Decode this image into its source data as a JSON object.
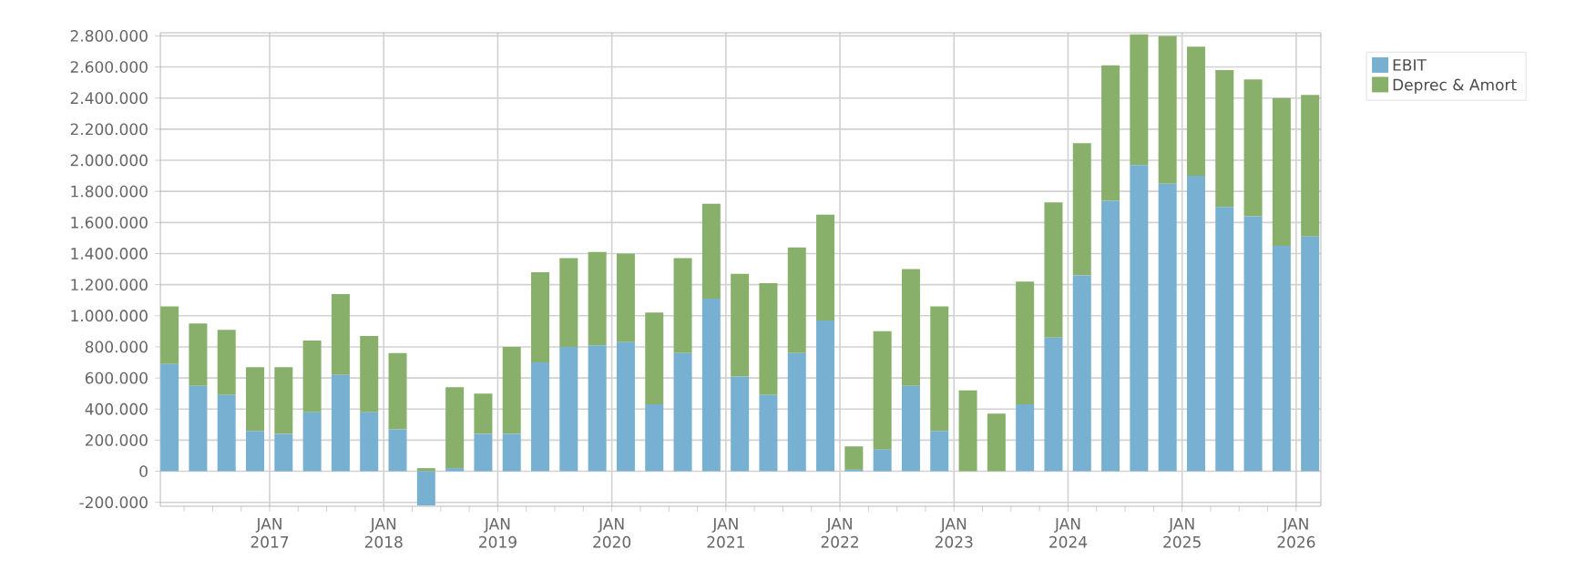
{
  "chart_data": {
    "type": "bar",
    "stacked": true,
    "grid": true,
    "legend": "right",
    "x": [
      "2016-02-15",
      "2016-05-15",
      "2016-08-15",
      "2016-11-15",
      "2017-02-15",
      "2017-05-15",
      "2017-08-15",
      "2017-11-15",
      "2018-02-15",
      "2018-05-15",
      "2018-08-15",
      "2018-11-15",
      "2019-02-15",
      "2019-05-15",
      "2019-08-15",
      "2019-11-15",
      "2020-02-15",
      "2020-05-15",
      "2020-08-15",
      "2020-11-15",
      "2021-02-15",
      "2021-05-15",
      "2021-08-15",
      "2021-11-15",
      "2022-02-15",
      "2022-05-15",
      "2022-08-15",
      "2022-11-15",
      "2023-02-15",
      "2023-05-15",
      "2023-08-15",
      "2023-11-15",
      "2024-02-15",
      "2024-05-15",
      "2024-08-15",
      "2024-11-15",
      "2025-02-15",
      "2025-05-15",
      "2025-08-15",
      "2025-11-15",
      "2026-02-15"
    ],
    "series": [
      {
        "name": "EBIT",
        "color": "#78b0d2",
        "values": [
          690000,
          550000,
          490000,
          260000,
          240000,
          380000,
          620000,
          380000,
          270000,
          -220000,
          20000,
          240000,
          240000,
          700000,
          800000,
          810000,
          830000,
          430000,
          760000,
          1110000,
          610000,
          490000,
          760000,
          970000,
          10000,
          140000,
          550000,
          260000,
          null,
          null,
          430000,
          860000,
          1260000,
          1740000,
          1970000,
          1850000,
          1900000,
          1700000,
          1640000,
          1450000,
          1510000
        ]
      },
      {
        "name": "Deprec & Amort",
        "color": "#88b06a",
        "values": [
          370000,
          400000,
          420000,
          410000,
          430000,
          460000,
          520000,
          490000,
          490000,
          20000,
          520000,
          260000,
          560000,
          580000,
          570000,
          600000,
          570000,
          590000,
          610000,
          610000,
          660000,
          720000,
          680000,
          680000,
          150000,
          760000,
          750000,
          800000,
          520000,
          370000,
          790000,
          870000,
          850000,
          870000,
          840000,
          950000,
          830000,
          880000,
          880000,
          950000,
          910000
        ]
      }
    ],
    "xlim": [
      "2016-01-16",
      "2026-03-19"
    ],
    "xticks": [
      {
        "value": "2016-04-01",
        "label": null
      },
      {
        "value": "2016-07-01",
        "label": null
      },
      {
        "value": "2016-10-01",
        "label": null
      },
      {
        "value": "2017-01-01",
        "label": "JAN 2017"
      },
      {
        "value": "2017-04-01",
        "label": null
      },
      {
        "value": "2017-07-01",
        "label": null
      },
      {
        "value": "2017-10-01",
        "label": null
      },
      {
        "value": "2018-01-01",
        "label": "JAN 2018"
      },
      {
        "value": "2018-04-01",
        "label": null
      },
      {
        "value": "2018-07-01",
        "label": null
      },
      {
        "value": "2018-10-01",
        "label": null
      },
      {
        "value": "2019-01-01",
        "label": "JAN 2019"
      },
      {
        "value": "2019-04-01",
        "label": null
      },
      {
        "value": "2019-07-01",
        "label": null
      },
      {
        "value": "2019-10-01",
        "label": null
      },
      {
        "value": "2020-01-01",
        "label": "JAN 2020"
      },
      {
        "value": "2020-04-01",
        "label": null
      },
      {
        "value": "2020-07-01",
        "label": null
      },
      {
        "value": "2020-10-01",
        "label": null
      },
      {
        "value": "2021-01-01",
        "label": "JAN 2021"
      },
      {
        "value": "2021-04-01",
        "label": null
      },
      {
        "value": "2021-07-01",
        "label": null
      },
      {
        "value": "2021-10-01",
        "label": null
      },
      {
        "value": "2022-01-01",
        "label": "JAN 2022"
      },
      {
        "value": "2022-04-01",
        "label": null
      },
      {
        "value": "2022-07-01",
        "label": null
      },
      {
        "value": "2022-10-01",
        "label": null
      },
      {
        "value": "2023-01-01",
        "label": "JAN 2023"
      },
      {
        "value": "2023-04-01",
        "label": null
      },
      {
        "value": "2023-07-01",
        "label": null
      },
      {
        "value": "2023-10-01",
        "label": null
      },
      {
        "value": "2024-01-01",
        "label": "JAN 2024"
      },
      {
        "value": "2024-04-01",
        "label": null
      },
      {
        "value": "2024-07-01",
        "label": null
      },
      {
        "value": "2024-10-01",
        "label": null
      },
      {
        "value": "2025-01-01",
        "label": "JAN 2025"
      },
      {
        "value": "2025-04-01",
        "label": null
      },
      {
        "value": "2025-07-01",
        "label": null
      },
      {
        "value": "2025-10-01",
        "label": null
      },
      {
        "value": "2026-01-01",
        "label": "JAN 2026"
      }
    ],
    "ylim": [
      -225000,
      2820000
    ],
    "yticks": [
      {
        "value": -200000,
        "label": "-200.000"
      },
      0,
      {
        "value": 200000,
        "label": "200.000"
      },
      {
        "value": 400000,
        "label": "400.000"
      },
      {
        "value": 600000,
        "label": "600.000"
      },
      {
        "value": 800000,
        "label": "800.000"
      },
      {
        "value": 1000000,
        "label": "1.000.000"
      },
      {
        "value": 1200000,
        "label": "1.200.000"
      },
      {
        "value": 1400000,
        "label": "1.400.000"
      },
      {
        "value": 1600000,
        "label": "1.600.000"
      },
      {
        "value": 1800000,
        "label": "1.800.000"
      },
      {
        "value": 2000000,
        "label": "2.000.000"
      },
      {
        "value": 2200000,
        "label": "2.200.000"
      },
      {
        "value": 2400000,
        "label": "2.400.000"
      },
      {
        "value": 2600000,
        "label": "2.600.000"
      },
      {
        "value": 2800000,
        "label": "2.800.000"
      }
    ]
  }
}
